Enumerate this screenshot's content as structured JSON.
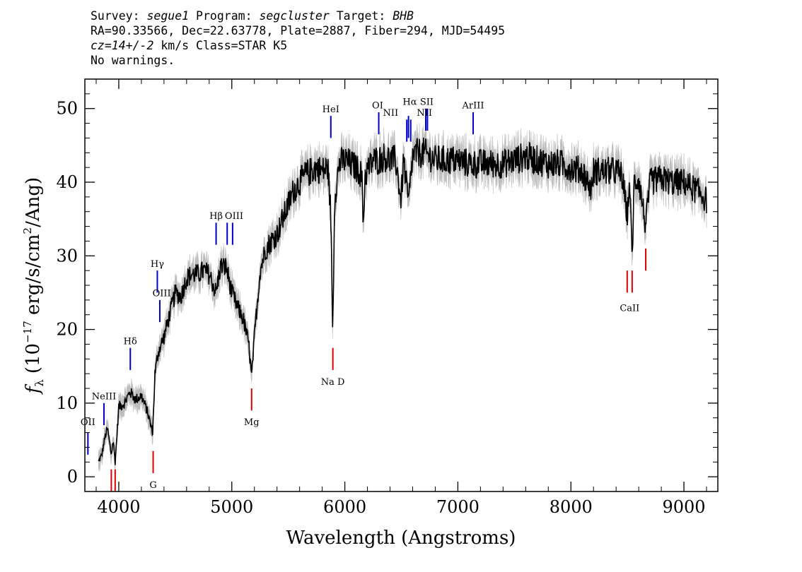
{
  "header": {
    "line1": {
      "survey_label": "Survey: ",
      "survey": "segue1",
      "program_label": " Program: ",
      "program": "segcluster",
      "target_label": " Target: ",
      "target": "BHB"
    },
    "line2": "RA=90.33566, Dec=22.63778, Plate=2887, Fiber=294, MJD=54495",
    "line3": {
      "cz": "cz=14+/-2",
      "rest": " km/s Class=STAR K5"
    },
    "line4": "No warnings."
  },
  "chart_data": {
    "type": "line",
    "xlabel": "Wavelength (Angstroms)",
    "ylabel_parts": {
      "f": "f",
      "sub": "λ",
      "pre": " (10",
      "exp": "−17",
      "mid": " erg/s/cm",
      "exp2": "2",
      "post": "/Ang)"
    },
    "xlim": [
      3700,
      9300
    ],
    "ylim": [
      -2,
      54
    ],
    "xticks": [
      4000,
      5000,
      6000,
      7000,
      8000,
      9000
    ],
    "yticks": [
      0,
      10,
      20,
      30,
      40,
      50
    ],
    "colors": {
      "flux": "#000000",
      "error": "#bdbdbd",
      "emission": "#0000cc",
      "absorption": "#dd0000"
    },
    "spectrum_anchors": [
      [
        3820,
        2
      ],
      [
        3850,
        3
      ],
      [
        3880,
        5.5
      ],
      [
        3900,
        6.5
      ],
      [
        3934,
        3
      ],
      [
        3950,
        5
      ],
      [
        3968,
        2
      ],
      [
        4000,
        9.5
      ],
      [
        4050,
        10
      ],
      [
        4100,
        11.5
      ],
      [
        4150,
        10.5
      ],
      [
        4200,
        11
      ],
      [
        4250,
        9
      ],
      [
        4300,
        6
      ],
      [
        4320,
        14
      ],
      [
        4350,
        17
      ],
      [
        4400,
        19
      ],
      [
        4450,
        22
      ],
      [
        4500,
        25
      ],
      [
        4550,
        24.5
      ],
      [
        4600,
        27
      ],
      [
        4650,
        27.5
      ],
      [
        4700,
        27.5
      ],
      [
        4750,
        28
      ],
      [
        4800,
        27.5
      ],
      [
        4861,
        25
      ],
      [
        4900,
        28.5
      ],
      [
        4950,
        28.5
      ],
      [
        5000,
        25
      ],
      [
        5050,
        23
      ],
      [
        5100,
        21.5
      ],
      [
        5150,
        18
      ],
      [
        5175,
        13.5
      ],
      [
        5200,
        19
      ],
      [
        5250,
        28
      ],
      [
        5300,
        31
      ],
      [
        5350,
        32
      ],
      [
        5400,
        33
      ],
      [
        5450,
        35
      ],
      [
        5500,
        37
      ],
      [
        5550,
        39
      ],
      [
        5600,
        40
      ],
      [
        5650,
        41
      ],
      [
        5700,
        41.5
      ],
      [
        5750,
        42
      ],
      [
        5800,
        41.5
      ],
      [
        5850,
        42
      ],
      [
        5875,
        36
      ],
      [
        5893,
        19.5
      ],
      [
        5910,
        38
      ],
      [
        5950,
        42.5
      ],
      [
        6000,
        43
      ],
      [
        6050,
        42.5
      ],
      [
        6100,
        42
      ],
      [
        6150,
        41
      ],
      [
        6162,
        34
      ],
      [
        6180,
        41
      ],
      [
        6250,
        43
      ],
      [
        6300,
        43
      ],
      [
        6350,
        43.5
      ],
      [
        6400,
        43
      ],
      [
        6450,
        43
      ],
      [
        6497,
        37.5
      ],
      [
        6520,
        43
      ],
      [
        6563,
        37
      ],
      [
        6600,
        43.5
      ],
      [
        6650,
        44
      ],
      [
        6700,
        44
      ],
      [
        6750,
        43.5
      ],
      [
        6800,
        43
      ],
      [
        6900,
        43
      ],
      [
        7000,
        43
      ],
      [
        7100,
        42.5
      ],
      [
        7200,
        42.5
      ],
      [
        7300,
        42.5
      ],
      [
        7400,
        42.5
      ],
      [
        7500,
        43
      ],
      [
        7600,
        43.5
      ],
      [
        7700,
        43
      ],
      [
        7800,
        42.5
      ],
      [
        7900,
        42.5
      ],
      [
        8000,
        42
      ],
      [
        8100,
        41.5
      ],
      [
        8183,
        39
      ],
      [
        8200,
        41.5
      ],
      [
        8300,
        41.5
      ],
      [
        8400,
        41.5
      ],
      [
        8450,
        41
      ],
      [
        8498,
        35.5
      ],
      [
        8520,
        40
      ],
      [
        8542,
        29.5
      ],
      [
        8560,
        40
      ],
      [
        8600,
        40.5
      ],
      [
        8662,
        34
      ],
      [
        8700,
        40
      ],
      [
        8800,
        40.5
      ],
      [
        8900,
        40
      ],
      [
        9000,
        40
      ],
      [
        9100,
        39
      ],
      [
        9150,
        38.5
      ],
      [
        9200,
        37.5
      ]
    ],
    "emission_lines": [
      {
        "label": "OII",
        "x": 3727,
        "y0": 3,
        "y1": 6
      },
      {
        "label": "NeIII",
        "x": 3869,
        "y0": 7,
        "y1": 10
      },
      {
        "label": "Hδ",
        "x": 4102,
        "y0": 14.5,
        "y1": 17.5
      },
      {
        "label": "Hγ",
        "x": 4341,
        "y0": 25,
        "y1": 28
      },
      {
        "label": "OIII",
        "x": 4363,
        "y0": 21,
        "y1": 24
      },
      {
        "label": "Hβ",
        "x": 4861,
        "y0": 31.5,
        "y1": 34.5
      },
      {
        "label": "OIII",
        "x": 4959,
        "y0": 31.5,
        "y1": 34.5
      },
      {
        "label": "OIII",
        "x": 5007,
        "y0": 31.5,
        "y1": 34.5
      },
      {
        "label": "HeI",
        "x": 5876,
        "y0": 46,
        "y1": 49
      },
      {
        "label": "OI",
        "x": 6300,
        "y0": 46.5,
        "y1": 49.5
      },
      {
        "label": "NII",
        "x": 6548,
        "y0": 45.5,
        "y1": 48.5
      },
      {
        "label": "Hα",
        "x": 6563,
        "y0": 46,
        "y1": 49
      },
      {
        "label": "NII",
        "x": 6583,
        "y0": 45.5,
        "y1": 48.5
      },
      {
        "label": "SII",
        "x": 6716,
        "y0": 47,
        "y1": 50
      },
      {
        "label": "SII",
        "x": 6731,
        "y0": 47,
        "y1": 50
      },
      {
        "label": "ArIII",
        "x": 7135,
        "y0": 46.5,
        "y1": 49.5
      }
    ],
    "absorption_lines": [
      {
        "label": "K",
        "x": 3934,
        "y0": -2,
        "y1": 1
      },
      {
        "label": "H",
        "x": 3968,
        "y0": -2,
        "y1": 1
      },
      {
        "label": "G",
        "x": 4304,
        "y0": 0.5,
        "y1": 3.5
      },
      {
        "label": "Mg",
        "x": 5175,
        "y0": 9,
        "y1": 12
      },
      {
        "label": "Na D",
        "x": 5894,
        "y0": 14.5,
        "y1": 17.5
      },
      {
        "label": "CaII",
        "x": 8498,
        "y0": 25,
        "y1": 28
      },
      {
        "label": "CaII",
        "x": 8542,
        "y0": 25,
        "y1": 28
      },
      {
        "label": "CaII",
        "x": 8662,
        "y0": 28,
        "y1": 31
      }
    ],
    "line_labels": [
      {
        "text": "OII",
        "x": 3727,
        "y": 7
      },
      {
        "text": "NeIII",
        "x": 3869,
        "y": 10.5
      },
      {
        "text": "Hδ",
        "x": 4102,
        "y": 18
      },
      {
        "text": "Hγ",
        "x": 4341,
        "y": 28.5
      },
      {
        "text": "OIII",
        "x": 4380,
        "y": 24.5
      },
      {
        "text": "Hβ",
        "x": 4861,
        "y": 35
      },
      {
        "text": "OIII",
        "x": 5020,
        "y": 35
      },
      {
        "text": "HeI",
        "x": 5876,
        "y": 49.5
      },
      {
        "text": "OI",
        "x": 6290,
        "y": 50
      },
      {
        "text": "NII",
        "x": 6405,
        "y": 49
      },
      {
        "text": "Hα",
        "x": 6575,
        "y": 50.5
      },
      {
        "text": "SII",
        "x": 6725,
        "y": 50.5
      },
      {
        "text": "NII",
        "x": 6705,
        "y": 49
      },
      {
        "text": "ArIII",
        "x": 7135,
        "y": 50
      },
      {
        "text": "G",
        "x": 4304,
        "y": -1.5
      },
      {
        "text": "Mg",
        "x": 5175,
        "y": 7
      },
      {
        "text": "Na D",
        "x": 5894,
        "y": 12.5
      },
      {
        "text": "CaII",
        "x": 8520,
        "y": 22.5
      }
    ]
  }
}
